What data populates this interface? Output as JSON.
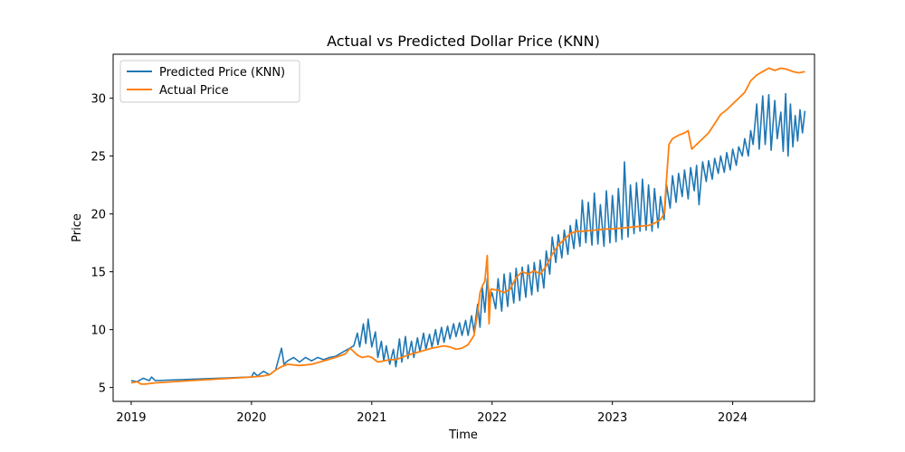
{
  "chart_data": {
    "type": "line",
    "title": "Actual vs Predicted Dollar Price (KNN)",
    "xlabel": "Time",
    "ylabel": "Price",
    "xlim": [
      2018.85,
      2024.68
    ],
    "ylim": [
      3.8,
      33.8
    ],
    "x_ticks": [
      2019,
      2020,
      2021,
      2022,
      2023,
      2024
    ],
    "x_tick_labels": [
      "2019",
      "2020",
      "2021",
      "2022",
      "2023",
      "2024"
    ],
    "y_ticks": [
      5,
      10,
      15,
      20,
      25,
      30
    ],
    "y_tick_labels": [
      "5",
      "10",
      "15",
      "20",
      "25",
      "30"
    ],
    "grid": false,
    "legend_position": "top-left",
    "series": [
      {
        "name": "Predicted Price (KNN)",
        "color": "#1f77b4",
        "points": [
          [
            2019.0,
            5.6
          ],
          [
            2019.05,
            5.5
          ],
          [
            2019.1,
            5.8
          ],
          [
            2019.15,
            5.6
          ],
          [
            2019.17,
            5.9
          ],
          [
            2019.2,
            5.6
          ],
          [
            2020.0,
            5.9
          ],
          [
            2020.02,
            6.3
          ],
          [
            2020.05,
            6.0
          ],
          [
            2020.1,
            6.4
          ],
          [
            2020.15,
            6.1
          ],
          [
            2020.2,
            6.5
          ],
          [
            2020.25,
            8.4
          ],
          [
            2020.27,
            7.0
          ],
          [
            2020.3,
            7.3
          ],
          [
            2020.35,
            7.6
          ],
          [
            2020.4,
            7.2
          ],
          [
            2020.45,
            7.6
          ],
          [
            2020.5,
            7.3
          ],
          [
            2020.55,
            7.6
          ],
          [
            2020.6,
            7.4
          ],
          [
            2020.65,
            7.6
          ],
          [
            2020.7,
            7.7
          ],
          [
            2020.75,
            8.0
          ],
          [
            2020.8,
            8.3
          ],
          [
            2020.85,
            8.6
          ],
          [
            2020.88,
            9.7
          ],
          [
            2020.9,
            8.5
          ],
          [
            2020.93,
            10.5
          ],
          [
            2020.95,
            8.8
          ],
          [
            2020.97,
            10.9
          ],
          [
            2021.0,
            8.5
          ],
          [
            2021.03,
            9.8
          ],
          [
            2021.05,
            7.6
          ],
          [
            2021.08,
            9.0
          ],
          [
            2021.1,
            7.3
          ],
          [
            2021.12,
            8.6
          ],
          [
            2021.15,
            7.0
          ],
          [
            2021.18,
            8.3
          ],
          [
            2021.2,
            6.8
          ],
          [
            2021.23,
            9.2
          ],
          [
            2021.25,
            7.2
          ],
          [
            2021.28,
            9.4
          ],
          [
            2021.3,
            7.5
          ],
          [
            2021.33,
            9.0
          ],
          [
            2021.35,
            7.6
          ],
          [
            2021.38,
            9.3
          ],
          [
            2021.4,
            8.1
          ],
          [
            2021.43,
            9.7
          ],
          [
            2021.45,
            8.3
          ],
          [
            2021.48,
            9.6
          ],
          [
            2021.5,
            8.5
          ],
          [
            2021.53,
            10.0
          ],
          [
            2021.55,
            8.7
          ],
          [
            2021.58,
            10.2
          ],
          [
            2021.6,
            8.9
          ],
          [
            2021.63,
            10.3
          ],
          [
            2021.65,
            9.2
          ],
          [
            2021.68,
            10.5
          ],
          [
            2021.7,
            9.4
          ],
          [
            2021.73,
            10.6
          ],
          [
            2021.75,
            9.5
          ],
          [
            2021.78,
            10.8
          ],
          [
            2021.8,
            9.5
          ],
          [
            2021.83,
            11.2
          ],
          [
            2021.85,
            9.8
          ],
          [
            2021.88,
            12.2
          ],
          [
            2021.9,
            10.2
          ],
          [
            2021.92,
            13.6
          ],
          [
            2021.94,
            11.5
          ],
          [
            2021.96,
            14.4
          ],
          [
            2021.98,
            12.5
          ],
          [
            2022.0,
            13.2
          ],
          [
            2022.03,
            11.8
          ],
          [
            2022.05,
            14.4
          ],
          [
            2022.08,
            11.6
          ],
          [
            2022.1,
            14.8
          ],
          [
            2022.13,
            12.0
          ],
          [
            2022.15,
            14.9
          ],
          [
            2022.18,
            12.3
          ],
          [
            2022.2,
            15.3
          ],
          [
            2022.23,
            12.5
          ],
          [
            2022.25,
            15.4
          ],
          [
            2022.28,
            12.8
          ],
          [
            2022.3,
            15.6
          ],
          [
            2022.33,
            13.0
          ],
          [
            2022.35,
            15.8
          ],
          [
            2022.38,
            13.3
          ],
          [
            2022.4,
            16.0
          ],
          [
            2022.43,
            13.6
          ],
          [
            2022.45,
            16.8
          ],
          [
            2022.48,
            14.8
          ],
          [
            2022.5,
            18.0
          ],
          [
            2022.53,
            15.8
          ],
          [
            2022.55,
            18.2
          ],
          [
            2022.58,
            16.2
          ],
          [
            2022.6,
            18.6
          ],
          [
            2022.63,
            16.5
          ],
          [
            2022.65,
            19.0
          ],
          [
            2022.68,
            17.0
          ],
          [
            2022.7,
            19.5
          ],
          [
            2022.73,
            17.2
          ],
          [
            2022.75,
            21.2
          ],
          [
            2022.78,
            17.5
          ],
          [
            2022.8,
            21.0
          ],
          [
            2022.83,
            17.3
          ],
          [
            2022.85,
            21.8
          ],
          [
            2022.88,
            17.4
          ],
          [
            2022.9,
            20.8
          ],
          [
            2022.93,
            17.2
          ],
          [
            2022.95,
            22.0
          ],
          [
            2022.98,
            17.5
          ],
          [
            2023.0,
            21.6
          ],
          [
            2023.03,
            17.6
          ],
          [
            2023.05,
            22.2
          ],
          [
            2023.08,
            17.8
          ],
          [
            2023.1,
            24.5
          ],
          [
            2023.13,
            18.0
          ],
          [
            2023.15,
            22.5
          ],
          [
            2023.18,
            18.3
          ],
          [
            2023.2,
            22.7
          ],
          [
            2023.23,
            18.5
          ],
          [
            2023.25,
            23.0
          ],
          [
            2023.28,
            18.6
          ],
          [
            2023.3,
            22.5
          ],
          [
            2023.33,
            18.5
          ],
          [
            2023.35,
            22.2
          ],
          [
            2023.38,
            18.8
          ],
          [
            2023.4,
            21.5
          ],
          [
            2023.43,
            19.5
          ],
          [
            2023.45,
            22.5
          ],
          [
            2023.48,
            20.5
          ],
          [
            2023.5,
            23.3
          ],
          [
            2023.53,
            21.0
          ],
          [
            2023.55,
            23.5
          ],
          [
            2023.58,
            21.5
          ],
          [
            2023.6,
            23.8
          ],
          [
            2023.63,
            21.3
          ],
          [
            2023.65,
            24.0
          ],
          [
            2023.68,
            22.0
          ],
          [
            2023.7,
            24.2
          ],
          [
            2023.72,
            20.8
          ],
          [
            2023.75,
            24.5
          ],
          [
            2023.78,
            22.8
          ],
          [
            2023.8,
            24.6
          ],
          [
            2023.83,
            23.0
          ],
          [
            2023.85,
            24.8
          ],
          [
            2023.88,
            23.5
          ],
          [
            2023.9,
            25.0
          ],
          [
            2023.93,
            23.6
          ],
          [
            2023.95,
            25.3
          ],
          [
            2023.98,
            23.8
          ],
          [
            2024.0,
            25.6
          ],
          [
            2024.03,
            24.2
          ],
          [
            2024.05,
            25.8
          ],
          [
            2024.08,
            25.0
          ],
          [
            2024.1,
            26.5
          ],
          [
            2024.13,
            25.0
          ],
          [
            2024.15,
            27.2
          ],
          [
            2024.17,
            26.0
          ],
          [
            2024.2,
            29.5
          ],
          [
            2024.22,
            25.6
          ],
          [
            2024.25,
            30.2
          ],
          [
            2024.27,
            26.0
          ],
          [
            2024.3,
            30.3
          ],
          [
            2024.32,
            25.5
          ],
          [
            2024.35,
            29.8
          ],
          [
            2024.37,
            26.5
          ],
          [
            2024.4,
            28.8
          ],
          [
            2024.42,
            25.4
          ],
          [
            2024.44,
            30.4
          ],
          [
            2024.46,
            25.0
          ],
          [
            2024.48,
            29.5
          ],
          [
            2024.5,
            25.8
          ],
          [
            2024.52,
            28.5
          ],
          [
            2024.54,
            26.3
          ],
          [
            2024.56,
            29.0
          ],
          [
            2024.58,
            27.0
          ],
          [
            2024.6,
            28.9
          ]
        ]
      },
      {
        "name": "Actual Price",
        "color": "#ff7f0e",
        "points": [
          [
            2019.0,
            5.4
          ],
          [
            2019.05,
            5.5
          ],
          [
            2019.08,
            5.3
          ],
          [
            2019.12,
            5.3
          ],
          [
            2019.2,
            5.4
          ],
          [
            2019.5,
            5.6
          ],
          [
            2020.0,
            5.9
          ],
          [
            2020.1,
            6.0
          ],
          [
            2020.15,
            6.1
          ],
          [
            2020.2,
            6.5
          ],
          [
            2020.25,
            6.8
          ],
          [
            2020.3,
            7.0
          ],
          [
            2020.4,
            6.9
          ],
          [
            2020.5,
            7.0
          ],
          [
            2020.6,
            7.3
          ],
          [
            2020.7,
            7.6
          ],
          [
            2020.78,
            7.9
          ],
          [
            2020.82,
            8.4
          ],
          [
            2020.85,
            8.1
          ],
          [
            2020.88,
            7.8
          ],
          [
            2020.92,
            7.6
          ],
          [
            2020.97,
            7.7
          ],
          [
            2021.0,
            7.6
          ],
          [
            2021.05,
            7.2
          ],
          [
            2021.1,
            7.3
          ],
          [
            2021.15,
            7.4
          ],
          [
            2021.2,
            7.4
          ],
          [
            2021.3,
            7.8
          ],
          [
            2021.4,
            8.1
          ],
          [
            2021.5,
            8.4
          ],
          [
            2021.6,
            8.6
          ],
          [
            2021.65,
            8.5
          ],
          [
            2021.7,
            8.3
          ],
          [
            2021.75,
            8.4
          ],
          [
            2021.8,
            8.7
          ],
          [
            2021.85,
            9.5
          ],
          [
            2021.88,
            11.5
          ],
          [
            2021.9,
            13.2
          ],
          [
            2021.92,
            13.8
          ],
          [
            2021.94,
            14.2
          ],
          [
            2021.96,
            16.4
          ],
          [
            2021.975,
            10.5
          ],
          [
            2021.99,
            13.5
          ],
          [
            2022.05,
            13.4
          ],
          [
            2022.1,
            13.2
          ],
          [
            2022.15,
            13.5
          ],
          [
            2022.2,
            14.5
          ],
          [
            2022.25,
            15.0
          ],
          [
            2022.3,
            14.8
          ],
          [
            2022.35,
            15.1
          ],
          [
            2022.4,
            14.8
          ],
          [
            2022.45,
            15.5
          ],
          [
            2022.5,
            16.5
          ],
          [
            2022.55,
            17.3
          ],
          [
            2022.6,
            17.8
          ],
          [
            2022.65,
            18.3
          ],
          [
            2022.7,
            18.5
          ],
          [
            2022.75,
            18.5
          ],
          [
            2022.85,
            18.6
          ],
          [
            2022.95,
            18.7
          ],
          [
            2023.0,
            18.7
          ],
          [
            2023.1,
            18.8
          ],
          [
            2023.2,
            18.9
          ],
          [
            2023.3,
            19.0
          ],
          [
            2023.35,
            19.2
          ],
          [
            2023.4,
            19.5
          ],
          [
            2023.43,
            20.0
          ],
          [
            2023.45,
            23.0
          ],
          [
            2023.47,
            26.0
          ],
          [
            2023.5,
            26.5
          ],
          [
            2023.55,
            26.8
          ],
          [
            2023.6,
            27.0
          ],
          [
            2023.63,
            27.2
          ],
          [
            2023.66,
            25.6
          ],
          [
            2023.7,
            26.0
          ],
          [
            2023.75,
            26.5
          ],
          [
            2023.8,
            27.0
          ],
          [
            2023.85,
            27.8
          ],
          [
            2023.9,
            28.6
          ],
          [
            2023.95,
            29.0
          ],
          [
            2024.0,
            29.5
          ],
          [
            2024.05,
            30.0
          ],
          [
            2024.1,
            30.5
          ],
          [
            2024.15,
            31.5
          ],
          [
            2024.2,
            32.0
          ],
          [
            2024.25,
            32.3
          ],
          [
            2024.3,
            32.6
          ],
          [
            2024.35,
            32.4
          ],
          [
            2024.4,
            32.6
          ],
          [
            2024.45,
            32.5
          ],
          [
            2024.5,
            32.3
          ],
          [
            2024.55,
            32.2
          ],
          [
            2024.6,
            32.3
          ]
        ]
      }
    ]
  }
}
